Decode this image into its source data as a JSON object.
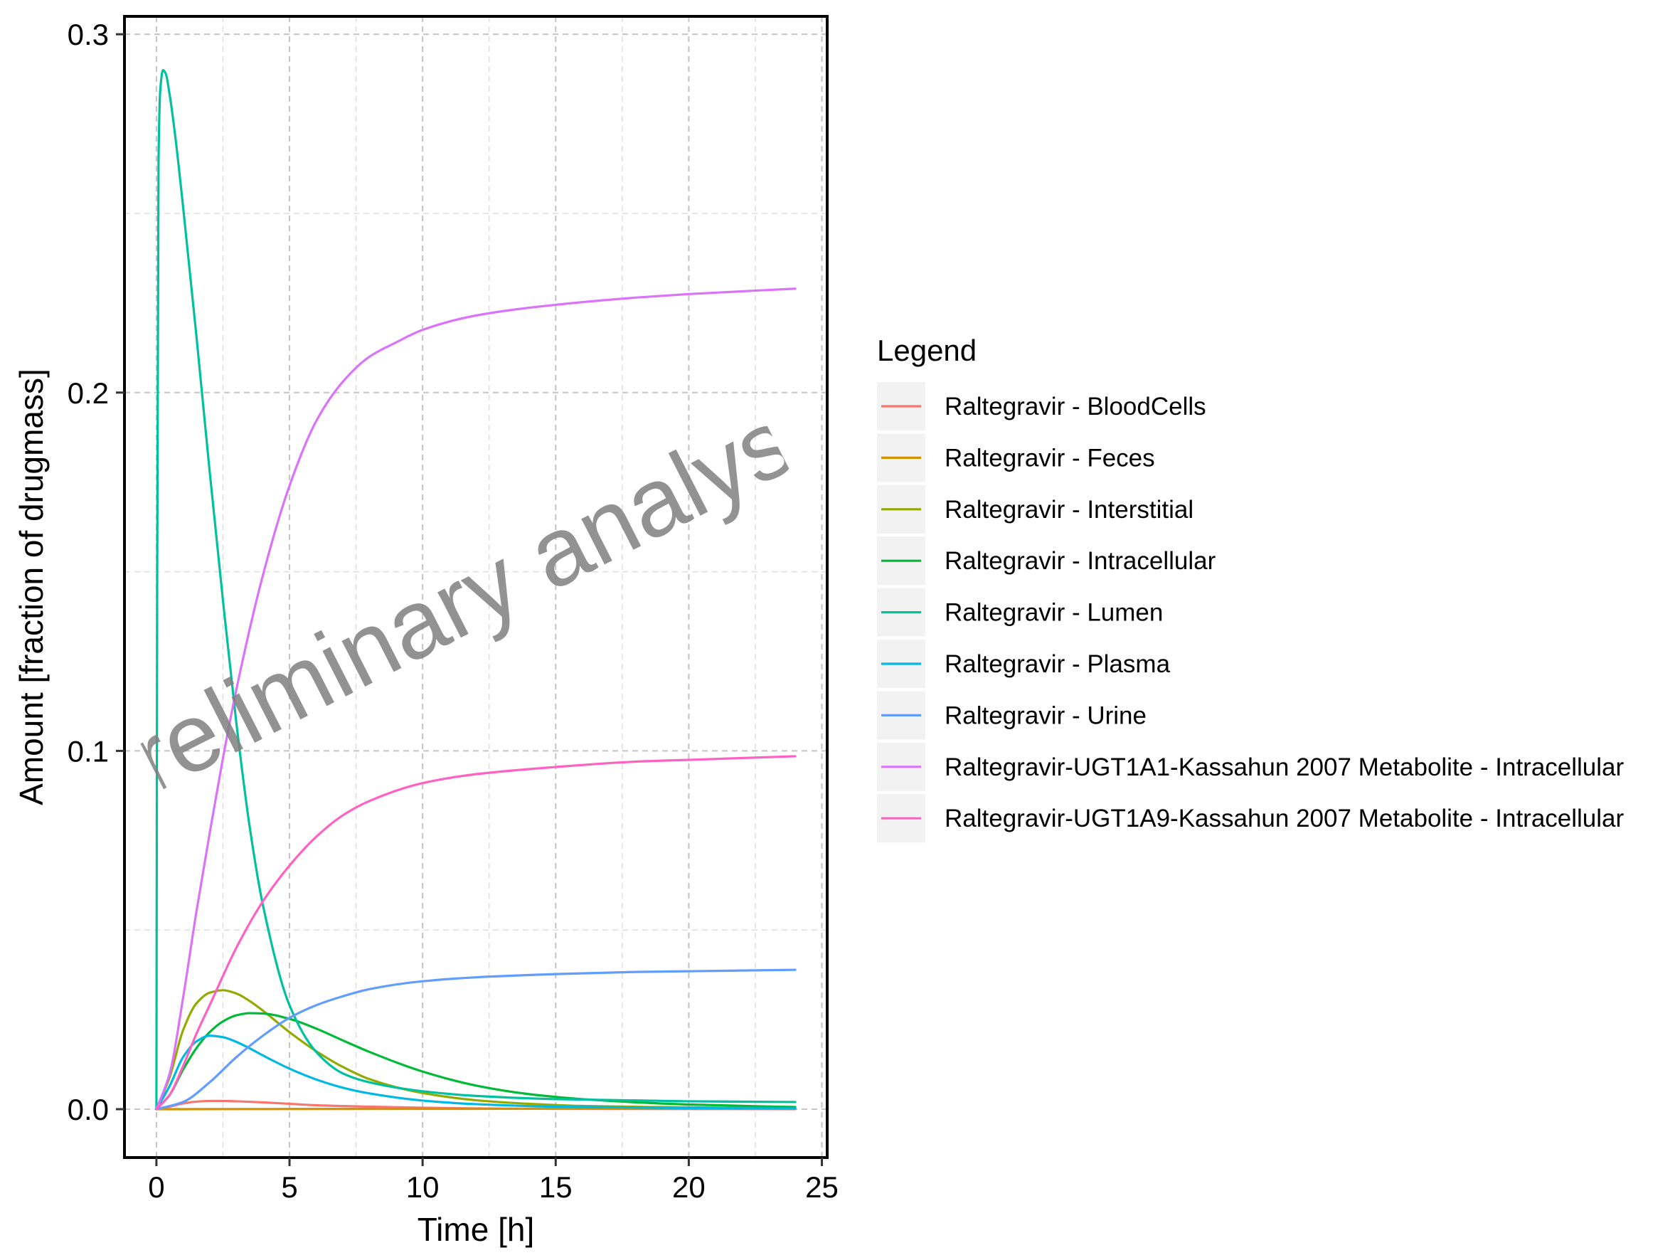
{
  "chart_data": {
    "type": "line",
    "title": "",
    "xlabel": "Time [h]",
    "ylabel": "Amount [fraction of drugmass]",
    "xlim": [
      -1.2,
      25.2
    ],
    "ylim": [
      -0.0135,
      0.305
    ],
    "x_ticks": [
      0,
      5,
      10,
      15,
      20,
      25
    ],
    "y_ticks": [
      0.0,
      0.1,
      0.2,
      0.3
    ],
    "x_tick_labels": [
      "0",
      "5",
      "10",
      "15",
      "20",
      "25"
    ],
    "y_tick_labels": [
      "0.0",
      "0.1",
      "0.2",
      "0.3"
    ],
    "grid": true,
    "legend": {
      "title": "Legend",
      "position": "right"
    },
    "watermark": "preliminary analysis",
    "series": [
      {
        "name": "Raltegravir - BloodCells",
        "color": "#F8766D",
        "x": [
          0,
          0.5,
          1,
          1.5,
          2,
          2.5,
          3,
          4,
          5,
          6,
          8,
          10,
          12,
          15,
          20,
          24
        ],
        "y": [
          0,
          0.0007,
          0.0016,
          0.0021,
          0.0023,
          0.0023,
          0.0022,
          0.0019,
          0.0015,
          0.0011,
          0.0007,
          0.0004,
          0.0002,
          0.0001,
          5e-05,
          3e-05
        ]
      },
      {
        "name": "Raltegravir - Feces",
        "color": "#D39200",
        "x": [
          0,
          2,
          5,
          10,
          15,
          20,
          24
        ],
        "y": [
          0,
          2e-05,
          5e-05,
          0.0001,
          0.00012,
          0.00013,
          0.00014
        ]
      },
      {
        "name": "Raltegravir - Interstitial",
        "color": "#93AA00",
        "x": [
          0,
          0.5,
          1,
          1.5,
          2,
          2.5,
          3,
          3.5,
          4,
          5,
          6,
          7,
          8,
          10,
          12,
          14,
          16,
          20,
          24
        ],
        "y": [
          0,
          0.009,
          0.022,
          0.0295,
          0.0325,
          0.0332,
          0.0323,
          0.0302,
          0.0275,
          0.0215,
          0.0162,
          0.0118,
          0.0084,
          0.0045,
          0.0025,
          0.0015,
          0.0009,
          0.0005,
          0.0003
        ]
      },
      {
        "name": "Raltegravir - Intracellular",
        "color": "#00BA38",
        "x": [
          0,
          0.5,
          1,
          1.5,
          2,
          2.5,
          3,
          3.5,
          4,
          5,
          6,
          7,
          8,
          10,
          12,
          14,
          16,
          20,
          24
        ],
        "y": [
          0,
          0.004,
          0.011,
          0.017,
          0.0215,
          0.0245,
          0.0262,
          0.0268,
          0.0267,
          0.0252,
          0.0225,
          0.0192,
          0.016,
          0.0105,
          0.0066,
          0.0042,
          0.0028,
          0.0013,
          0.0006
        ]
      },
      {
        "name": "Raltegravir - Lumen",
        "color": "#00C19F",
        "x": [
          0,
          0.03,
          0.08,
          0.15,
          0.25,
          0.35,
          0.5,
          0.7,
          1,
          1.5,
          2,
          2.5,
          3,
          3.5,
          4,
          5,
          6,
          7,
          8,
          10,
          12,
          15,
          20,
          24
        ],
        "y": [
          0,
          0.15,
          0.265,
          0.285,
          0.29,
          0.289,
          0.283,
          0.272,
          0.252,
          0.216,
          0.178,
          0.142,
          0.108,
          0.079,
          0.057,
          0.029,
          0.016,
          0.01,
          0.0075,
          0.005,
          0.0037,
          0.0028,
          0.0022,
          0.002
        ]
      },
      {
        "name": "Raltegravir - Plasma",
        "color": "#00B9E3",
        "x": [
          0,
          0.5,
          1,
          1.5,
          2,
          2.5,
          3,
          3.5,
          4,
          5,
          6,
          7,
          8,
          10,
          12,
          15,
          20,
          24
        ],
        "y": [
          0,
          0.0065,
          0.0145,
          0.0189,
          0.0205,
          0.0201,
          0.0188,
          0.017,
          0.015,
          0.0113,
          0.0083,
          0.006,
          0.0044,
          0.0024,
          0.0014,
          0.0007,
          0.0003,
          0.0002
        ]
      },
      {
        "name": "Raltegravir - Urine",
        "color": "#619CFF",
        "x": [
          0,
          1,
          2,
          3,
          4,
          5,
          6,
          7,
          8,
          10,
          12,
          15,
          18,
          20,
          24
        ],
        "y": [
          0,
          0.002,
          0.0075,
          0.0145,
          0.0205,
          0.0255,
          0.029,
          0.0315,
          0.0335,
          0.0357,
          0.0368,
          0.0377,
          0.0383,
          0.0385,
          0.0389
        ]
      },
      {
        "name": "Raltegravir-UGT1A1-Kassahun 2007 Metabolite - Intracellular",
        "color": "#DB72FB",
        "x": [
          0,
          0.5,
          1,
          1.5,
          2,
          2.5,
          3,
          4,
          5,
          6,
          7,
          8,
          9,
          10,
          12,
          15,
          18,
          20,
          24
        ],
        "y": [
          0,
          0.01,
          0.031,
          0.055,
          0.077,
          0.098,
          0.117,
          0.149,
          0.174,
          0.192,
          0.203,
          0.21,
          0.214,
          0.2175,
          0.2215,
          0.2245,
          0.2265,
          0.2275,
          0.229
        ]
      },
      {
        "name": "Raltegravir-UGT1A9-Kassahun 2007 Metabolite - Intracellular",
        "color": "#FF61C3",
        "x": [
          0,
          0.5,
          1,
          1.5,
          2,
          3,
          4,
          5,
          6,
          7,
          8,
          10,
          12,
          15,
          18,
          20,
          24
        ],
        "y": [
          0,
          0.004,
          0.012,
          0.021,
          0.029,
          0.045,
          0.058,
          0.068,
          0.076,
          0.082,
          0.086,
          0.091,
          0.0935,
          0.0955,
          0.097,
          0.0975,
          0.0985
        ]
      }
    ]
  }
}
